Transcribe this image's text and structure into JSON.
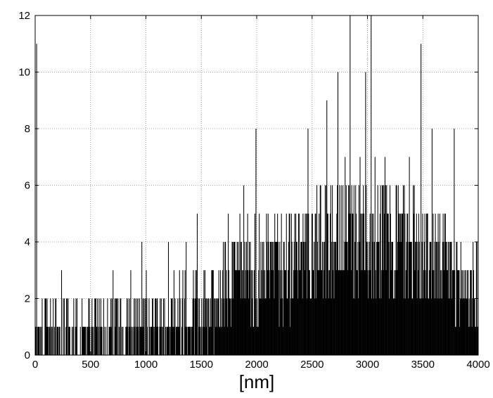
{
  "chart_data": {
    "type": "bar",
    "title": "",
    "xlabel": "[nm]",
    "ylabel": "",
    "xlim": [
      0,
      4000
    ],
    "ylim": [
      0,
      12
    ],
    "xticks": [
      0,
      500,
      1000,
      1500,
      2000,
      2500,
      3000,
      3500,
      4000
    ],
    "yticks": [
      0,
      2,
      4,
      6,
      8,
      10,
      12
    ],
    "grid": true,
    "grid_style": "dotted",
    "bar_color": "#000000",
    "bin_width": 5,
    "envelope": [
      [
        0,
        0.6
      ],
      [
        200,
        0.8
      ],
      [
        500,
        0.9
      ],
      [
        800,
        1.0
      ],
      [
        1100,
        1.2
      ],
      [
        1400,
        1.5
      ],
      [
        1600,
        1.8
      ],
      [
        1700,
        2.4
      ],
      [
        2000,
        2.9
      ],
      [
        2300,
        3.4
      ],
      [
        2500,
        3.9
      ],
      [
        2700,
        4.2
      ],
      [
        2900,
        4.4
      ],
      [
        3100,
        4.3
      ],
      [
        3300,
        4.0
      ],
      [
        3500,
        3.6
      ],
      [
        3700,
        3.0
      ],
      [
        3900,
        2.4
      ],
      [
        4000,
        2.1
      ]
    ],
    "spikes": [
      [
        10,
        11
      ],
      [
        180,
        2
      ],
      [
        480,
        2
      ],
      [
        860,
        3
      ],
      [
        1000,
        3
      ],
      [
        1460,
        5
      ],
      [
        1990,
        8
      ],
      [
        2630,
        9
      ],
      [
        2730,
        10
      ],
      [
        2840,
        12
      ],
      [
        2980,
        10
      ],
      [
        3030,
        12
      ],
      [
        3480,
        11
      ],
      [
        3580,
        8
      ],
      [
        3780,
        8
      ]
    ]
  }
}
